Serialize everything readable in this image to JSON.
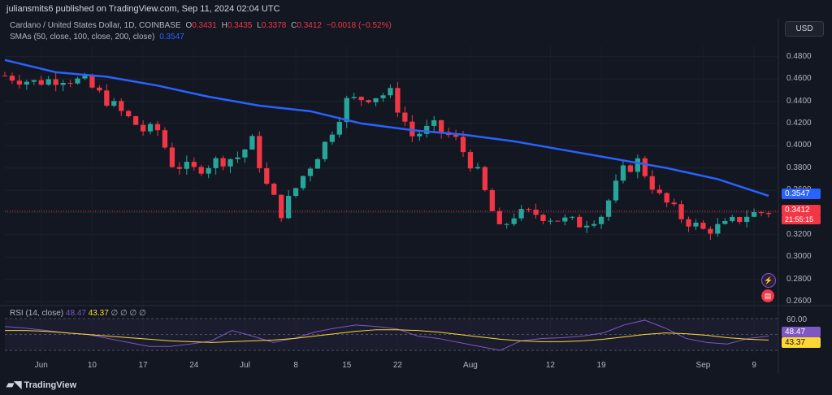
{
  "header": {
    "publisher_line": "juliansmits6 published on TradingView.com, Sep 11, 2024 02:04 UTC",
    "currency_button": "USD"
  },
  "legend": {
    "symbol": "Cardano / United States Dollar, 1D, COINBASE",
    "o_label": "O",
    "o_val": "0.3431",
    "h_label": "H",
    "h_val": "0.3435",
    "l_label": "L",
    "l_val": "0.3378",
    "c_label": "C",
    "c_val": "0.3412",
    "change": "−0.0018 (−0.52%)",
    "sma_label": "SMAs (50, close, 100, close, 200, close)",
    "sma_val": "0.3547"
  },
  "price_axis": {
    "ticks": [
      "0.4800",
      "0.4600",
      "0.4400",
      "0.4200",
      "0.4000",
      "0.3800",
      "0.3600",
      "0.3400",
      "0.3200",
      "0.3000",
      "0.2800",
      "0.2600"
    ],
    "sma_tag": "0.3547",
    "price_tag": "0.3412",
    "countdown": "21:55:15"
  },
  "rsi": {
    "label": "RSI (14, close)",
    "rsi_val": "48.47",
    "ma_val": "43.37",
    "extras": "∅ ∅ ∅ ∅",
    "axis_top": "60.00",
    "tag_rsi": "48.47",
    "tag_ma": "43.37"
  },
  "time_axis": [
    "Jun",
    "10",
    "17",
    "24",
    "Jul",
    "8",
    "15",
    "22",
    "Aug",
    "12",
    "19",
    "Sep",
    "9"
  ],
  "footer": {
    "logo_text": "TradingView"
  },
  "colors": {
    "bg": "#131722",
    "up": "#26a69a",
    "down": "#f23645",
    "sma": "#2962ff",
    "rsi": "#7e57c2",
    "rsi_ma": "#fdd835"
  },
  "chart_data": [
    {
      "type": "candlestick",
      "title": "Cardano / United States Dollar, 1D, COINBASE",
      "x_start": "2024-05-29",
      "x_end": "2024-09-11",
      "ylim": [
        0.255,
        0.49
      ],
      "grid": true,
      "sma_50": [
        [
          "2024-05-29",
          0.477
        ],
        [
          "2024-06-05",
          0.466
        ],
        [
          "2024-06-12",
          0.462
        ],
        [
          "2024-06-19",
          0.454
        ],
        [
          "2024-06-26",
          0.444
        ],
        [
          "2024-07-03",
          0.436
        ],
        [
          "2024-07-10",
          0.431
        ],
        [
          "2024-07-17",
          0.42
        ],
        [
          "2024-07-24",
          0.414
        ],
        [
          "2024-07-31",
          0.41
        ],
        [
          "2024-08-07",
          0.404
        ],
        [
          "2024-08-14",
          0.396
        ],
        [
          "2024-08-21",
          0.388
        ],
        [
          "2024-08-28",
          0.38
        ],
        [
          "2024-09-04",
          0.37
        ],
        [
          "2024-09-11",
          0.355
        ]
      ],
      "close": [
        [
          "2024-05-29",
          0.463
        ],
        [
          "2024-06-02",
          0.457
        ],
        [
          "2024-06-06",
          0.461
        ],
        [
          "2024-06-09",
          0.457
        ],
        [
          "2024-06-12",
          0.441
        ],
        [
          "2024-06-14",
          0.43
        ],
        [
          "2024-06-17",
          0.414
        ],
        [
          "2024-06-19",
          0.414
        ],
        [
          "2024-06-21",
          0.384
        ],
        [
          "2024-06-24",
          0.378
        ],
        [
          "2024-06-27",
          0.386
        ],
        [
          "2024-06-30",
          0.39
        ],
        [
          "2024-07-02",
          0.404
        ],
        [
          "2024-07-04",
          0.364
        ],
        [
          "2024-07-06",
          0.34
        ],
        [
          "2024-07-09",
          0.373
        ],
        [
          "2024-07-12",
          0.402
        ],
        [
          "2024-07-15",
          0.44
        ],
        [
          "2024-07-18",
          0.444
        ],
        [
          "2024-07-21",
          0.447
        ],
        [
          "2024-07-24",
          0.409
        ],
        [
          "2024-07-27",
          0.417
        ],
        [
          "2024-07-30",
          0.405
        ],
        [
          "2024-08-02",
          0.375
        ],
        [
          "2024-08-05",
          0.324
        ],
        [
          "2024-08-07",
          0.338
        ],
        [
          "2024-08-10",
          0.339
        ],
        [
          "2024-08-13",
          0.334
        ],
        [
          "2024-08-16",
          0.33
        ],
        [
          "2024-08-19",
          0.338
        ],
        [
          "2024-08-22",
          0.377
        ],
        [
          "2024-08-24",
          0.386
        ],
        [
          "2024-08-27",
          0.354
        ],
        [
          "2024-08-30",
          0.336
        ],
        [
          "2024-09-02",
          0.324
        ],
        [
          "2024-09-05",
          0.328
        ],
        [
          "2024-09-08",
          0.338
        ],
        [
          "2024-09-11",
          0.341
        ]
      ]
    },
    {
      "type": "line",
      "title": "RSI (14, close)",
      "ylim": [
        25,
        70
      ],
      "series": [
        {
          "name": "RSI",
          "values": [
            60,
            58,
            55,
            52,
            50,
            45,
            40,
            35,
            35,
            38,
            42,
            55,
            48,
            40,
            45,
            53,
            58,
            62,
            60,
            57,
            48,
            45,
            40,
            35,
            30,
            42,
            45,
            46,
            48,
            52,
            62,
            68,
            58,
            45,
            40,
            38,
            45,
            48
          ]
        },
        {
          "name": "RSI MA",
          "values": [
            55,
            55,
            54,
            52,
            50,
            48,
            46,
            44,
            42,
            41,
            40,
            41,
            42,
            43,
            45,
            48,
            51,
            54,
            56,
            56,
            55,
            53,
            50,
            47,
            44,
            42,
            41,
            41,
            42,
            44,
            47,
            50,
            52,
            51,
            49,
            46,
            44,
            43
          ]
        }
      ]
    }
  ]
}
